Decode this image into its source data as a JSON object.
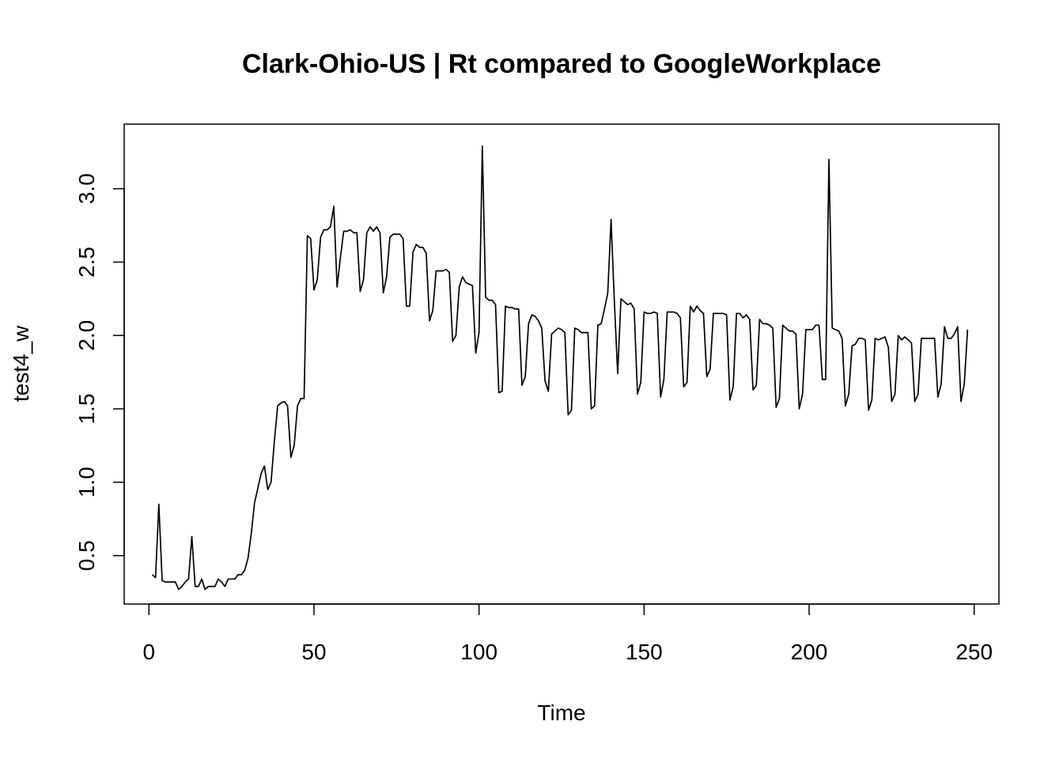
{
  "chart_data": {
    "type": "line",
    "title": "Clark-Ohio-US | Rt compared to GoogleWorkplace",
    "xlabel": "Time",
    "ylabel": "test4_w",
    "xlim": [
      -7.5,
      257.5
    ],
    "ylim": [
      0.17,
      3.44
    ],
    "x_ticks": [
      0,
      50,
      100,
      150,
      200,
      250
    ],
    "x_tick_labels": [
      "0",
      "50",
      "100",
      "150",
      "200",
      "250"
    ],
    "y_ticks": [
      0.5,
      1.0,
      1.5,
      2.0,
      2.5,
      3.0
    ],
    "y_tick_labels": [
      "0.5",
      "1.0",
      "1.5",
      "2.0",
      "2.5",
      "3.0"
    ],
    "grid": false,
    "legend": "none",
    "series": [
      {
        "color": "#000000",
        "x_start": 1,
        "values": [
          0.37,
          0.35,
          0.85,
          0.33,
          0.32,
          0.32,
          0.32,
          0.32,
          0.27,
          0.29,
          0.32,
          0.34,
          0.63,
          0.29,
          0.29,
          0.34,
          0.27,
          0.29,
          0.29,
          0.29,
          0.34,
          0.32,
          0.29,
          0.34,
          0.34,
          0.34,
          0.37,
          0.37,
          0.4,
          0.48,
          0.65,
          0.86,
          0.96,
          1.06,
          1.11,
          0.95,
          1.0,
          1.28,
          1.52,
          1.54,
          1.55,
          1.52,
          1.17,
          1.25,
          1.52,
          1.57,
          1.57,
          2.68,
          2.66,
          2.31,
          2.38,
          2.67,
          2.72,
          2.72,
          2.74,
          2.88,
          2.33,
          2.53,
          2.71,
          2.71,
          2.72,
          2.7,
          2.7,
          2.3,
          2.38,
          2.7,
          2.74,
          2.71,
          2.74,
          2.7,
          2.29,
          2.4,
          2.67,
          2.69,
          2.69,
          2.69,
          2.66,
          2.2,
          2.2,
          2.57,
          2.62,
          2.6,
          2.6,
          2.56,
          2.1,
          2.17,
          2.44,
          2.44,
          2.44,
          2.45,
          2.43,
          1.96,
          2.0,
          2.33,
          2.4,
          2.36,
          2.35,
          2.34,
          1.88,
          2.02,
          3.29,
          2.26,
          2.24,
          2.24,
          2.21,
          1.61,
          1.62,
          2.2,
          2.19,
          2.19,
          2.18,
          2.18,
          1.66,
          1.72,
          2.08,
          2.14,
          2.13,
          2.1,
          2.05,
          1.69,
          1.62,
          2.01,
          2.03,
          2.05,
          2.04,
          2.02,
          1.46,
          1.49,
          2.05,
          2.04,
          2.02,
          2.02,
          2.02,
          1.5,
          1.52,
          2.07,
          2.08,
          2.18,
          2.29,
          2.79,
          2.23,
          1.74,
          2.25,
          2.23,
          2.21,
          2.22,
          2.18,
          1.6,
          1.68,
          2.16,
          2.15,
          2.15,
          2.16,
          2.15,
          1.58,
          1.7,
          2.16,
          2.16,
          2.16,
          2.15,
          2.12,
          1.65,
          1.68,
          2.2,
          2.16,
          2.2,
          2.17,
          2.15,
          1.72,
          1.77,
          2.15,
          2.15,
          2.15,
          2.15,
          2.14,
          1.56,
          1.65,
          2.15,
          2.15,
          2.12,
          2.14,
          2.11,
          1.63,
          1.66,
          2.11,
          2.08,
          2.08,
          2.07,
          2.05,
          1.51,
          1.57,
          2.07,
          2.05,
          2.03,
          2.03,
          2.01,
          1.5,
          1.6,
          2.04,
          2.04,
          2.04,
          2.07,
          2.07,
          1.7,
          1.7,
          3.2,
          2.05,
          2.04,
          2.03,
          1.98,
          1.52,
          1.6,
          1.93,
          1.94,
          1.98,
          1.98,
          1.97,
          1.49,
          1.56,
          1.98,
          1.97,
          1.98,
          1.99,
          1.92,
          1.55,
          1.6,
          2.0,
          1.97,
          1.99,
          1.97,
          1.95,
          1.55,
          1.6,
          1.98,
          1.98,
          1.98,
          1.98,
          1.98,
          1.58,
          1.67,
          2.06,
          1.98,
          1.98,
          2.01,
          2.06,
          1.55,
          1.67,
          2.04
        ]
      }
    ]
  }
}
